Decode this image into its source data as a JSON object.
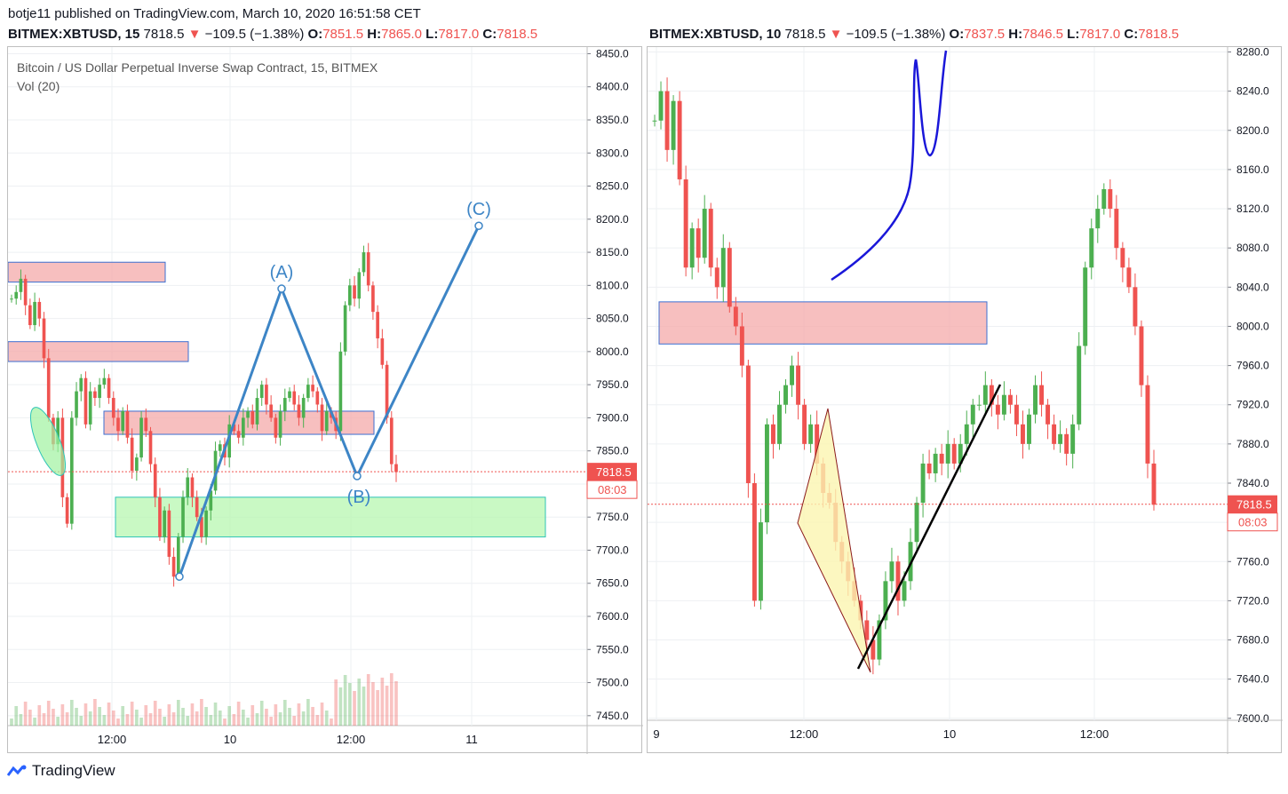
{
  "header": {
    "published_line": "botje11 published on TradingView.com, March 10, 2020 16:51:58 CET",
    "left": {
      "symbol": "BITMEX:XBTUSD, 15",
      "price": "7818.5",
      "change": "−109.5 (−1.38%)",
      "o_label": "O:",
      "o": "7851.5",
      "h_label": "H:",
      "h": "7865.0",
      "l_label": "L:",
      "l": "7817.0",
      "c_label": "C:",
      "c": "7818.5"
    },
    "right": {
      "symbol": "BITMEX:XBTUSD, 10",
      "price": "7818.5",
      "change": "−109.5 (−1.38%)",
      "o_label": "O:",
      "o": "7837.5",
      "h_label": "H:",
      "h": "7846.5",
      "l_label": "L:",
      "l": "7817.0",
      "c_label": "C:",
      "c": "7818.5"
    }
  },
  "footer": {
    "brand": "TradingView"
  },
  "colors": {
    "up": "#4caf50",
    "down": "#ef5350",
    "wave": "#3d85c6",
    "zone_red": "#f4a9a9",
    "zone_green": "#b7f7b0",
    "pen": "#1a17d9"
  },
  "chart_data": [
    {
      "type": "candlestick",
      "title": "Bitcoin / US Dollar Perpetual Inverse Swap Contract, 15, BITMEX",
      "subtitle": "Vol (20)",
      "x_tick_labels": [
        "12:00",
        "10",
        "12:00",
        "11"
      ],
      "y_tick_labels": [
        "8450.0",
        "8400.0",
        "8350.0",
        "8300.0",
        "8250.0",
        "8200.0",
        "8150.0",
        "8100.0",
        "8050.0",
        "8000.0",
        "7950.0",
        "7900.0",
        "7850.0",
        "7800.0",
        "7750.0",
        "7700.0",
        "7650.0",
        "7600.0",
        "7550.0",
        "7500.0",
        "7450.0"
      ],
      "ylim": [
        7435,
        8460
      ],
      "last_price": 7818.5,
      "last_price_label": "7818.5",
      "countdown_label": "08:03",
      "price_path": [
        8080,
        8090,
        8110,
        8070,
        8040,
        8075,
        8050,
        7990,
        7900,
        7860,
        7900,
        7780,
        7740,
        7900,
        7940,
        7960,
        7890,
        7940,
        7930,
        7950,
        7960,
        7930,
        7900,
        7880,
        7910,
        7870,
        7820,
        7840,
        7900,
        7880,
        7830,
        7780,
        7720,
        7760,
        7690,
        7660,
        7720,
        7780,
        7810,
        7780,
        7750,
        7720,
        7760,
        7790,
        7850,
        7860,
        7840,
        7890,
        7880,
        7870,
        7900,
        7910,
        7890,
        7930,
        7950,
        7920,
        7900,
        7870,
        7910,
        7930,
        7940,
        7920,
        7900,
        7930,
        7950,
        7940,
        7920,
        7880,
        7910,
        7900,
        7880,
        8000,
        8070,
        8100,
        8080,
        8120,
        8150,
        8100,
        8060,
        8020,
        7980,
        7900,
        7830,
        7818
      ],
      "annotations": {
        "wave_labels": [
          "(A)",
          "(B)",
          "(C)"
        ],
        "wave_points": [
          [
            7660
          ],
          [
            8095
          ],
          [
            7812
          ],
          [
            8190
          ]
        ],
        "zones": [
          {
            "color": "red",
            "from": 8105,
            "to": 8135
          },
          {
            "color": "red",
            "from": 7985,
            "to": 8015
          },
          {
            "color": "red",
            "from": 7875,
            "to": 7910
          },
          {
            "color": "green",
            "from": 7720,
            "to": 7780
          }
        ]
      }
    },
    {
      "type": "candlestick",
      "x_tick_labels": [
        "9",
        "12:00",
        "10",
        "12:00"
      ],
      "y_tick_labels": [
        "8280.0",
        "8240.0",
        "8200.0",
        "8160.0",
        "8120.0",
        "8080.0",
        "8040.0",
        "8000.0",
        "7960.0",
        "7920.0",
        "7880.0",
        "7840.0",
        "7800.0",
        "7760.0",
        "7720.0",
        "7680.0",
        "7640.0",
        "7600.0"
      ],
      "ylim": [
        7598,
        8285
      ],
      "last_price": 7818.5,
      "last_price_label": "7818.5",
      "countdown_label": "08:03",
      "price_path": [
        8210,
        8240,
        8180,
        8230,
        8150,
        8060,
        8100,
        8070,
        8120,
        8060,
        8040,
        8080,
        8020,
        8000,
        7960,
        7840,
        7720,
        7800,
        7900,
        7880,
        7920,
        7940,
        7960,
        7920,
        7880,
        7900,
        7860,
        7830,
        7820,
        7780,
        7760,
        7740,
        7720,
        7700,
        7680,
        7660,
        7700,
        7740,
        7760,
        7720,
        7740,
        7780,
        7820,
        7860,
        7850,
        7870,
        7860,
        7880,
        7860,
        7880,
        7900,
        7920,
        7920,
        7940,
        7920,
        7910,
        7930,
        7920,
        7900,
        7880,
        7910,
        7940,
        7920,
        7900,
        7880,
        7890,
        7870,
        7900,
        7980,
        8060,
        8100,
        8120,
        8140,
        8120,
        8080,
        8060,
        8040,
        8000,
        7940,
        7860,
        7818
      ],
      "annotations": {
        "zones": [
          {
            "color": "red",
            "from": 7982,
            "to": 8025
          }
        ]
      }
    }
  ]
}
